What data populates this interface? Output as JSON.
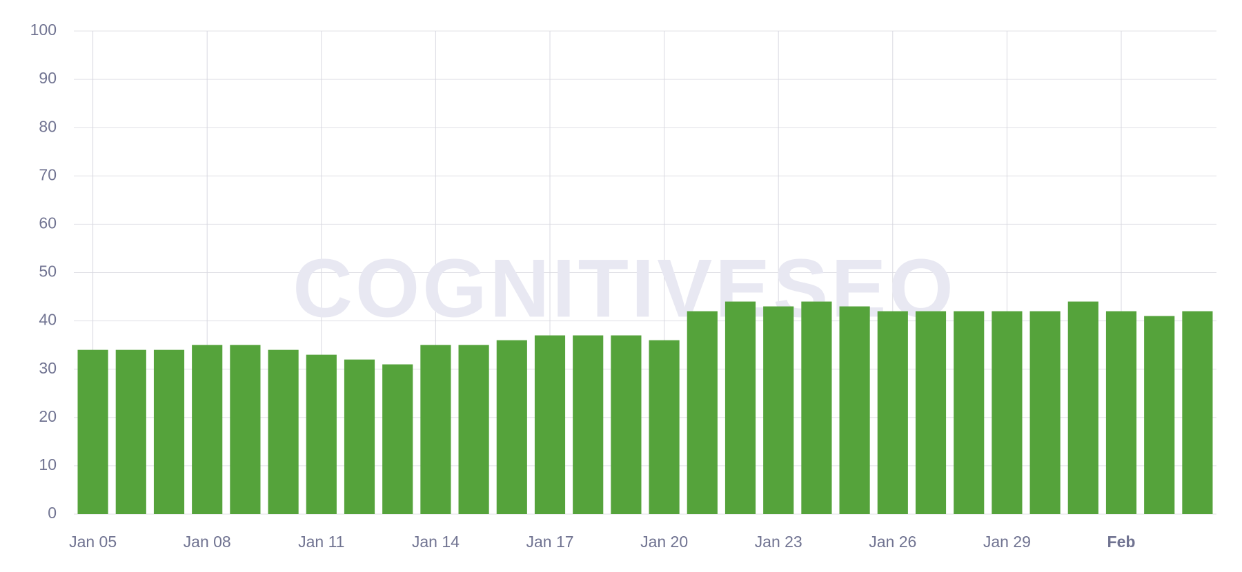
{
  "chart_data": {
    "type": "bar",
    "watermark": "COGNITIVESEO",
    "categories": [
      "Jan 05",
      null,
      null,
      "Jan 08",
      null,
      null,
      "Jan 11",
      null,
      null,
      "Jan 14",
      null,
      null,
      "Jan 17",
      null,
      null,
      "Jan 20",
      null,
      null,
      "Jan 23",
      null,
      null,
      "Jan 26",
      null,
      null,
      "Jan 29",
      null,
      null,
      "Feb",
      null,
      null
    ],
    "values": [
      34,
      34,
      34,
      35,
      35,
      34,
      33,
      32,
      31,
      35,
      35,
      36,
      37,
      37,
      37,
      36,
      42,
      44,
      43,
      44,
      43,
      42,
      42,
      42,
      42,
      42,
      44,
      42,
      41,
      42
    ],
    "color": "#55a33b",
    "ylim": [
      0,
      100
    ],
    "yticks": [
      0,
      10,
      20,
      30,
      40,
      50,
      60,
      70,
      80,
      90,
      100
    ],
    "grid": true
  }
}
